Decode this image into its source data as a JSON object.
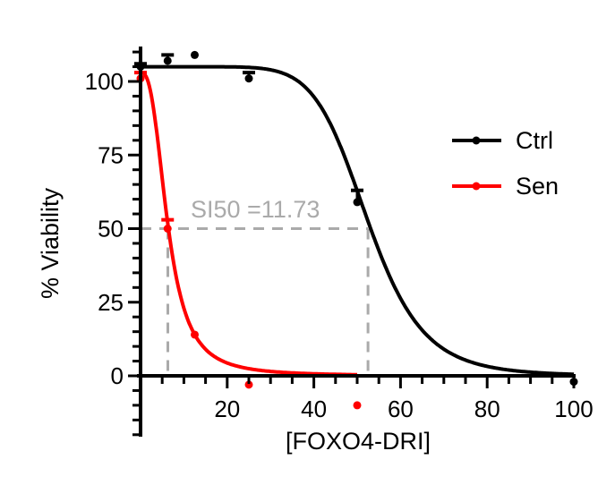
{
  "chart_data": {
    "type": "line",
    "title": "",
    "xlabel": "[FOXO4-DRI]",
    "ylabel": "% Viability",
    "xlim": [
      0,
      100
    ],
    "ylim": [
      -20,
      110
    ],
    "x_ticks": [
      "20",
      "40",
      "60",
      "80",
      "100"
    ],
    "y_ticks": [
      "0",
      "25",
      "50",
      "75",
      "100"
    ],
    "annotation": "SI50 =11.73",
    "legend_position": "right",
    "series": [
      {
        "name": "Ctrl",
        "color": "#000000",
        "points": [
          [
            0,
            105
          ],
          [
            6.25,
            107
          ],
          [
            12.5,
            109
          ],
          [
            25,
            101
          ],
          [
            50,
            59
          ],
          [
            100,
            -2
          ]
        ],
        "error_tops": [
          [
            0,
            106
          ],
          [
            6.25,
            109
          ],
          [
            25,
            103
          ],
          [
            50,
            63
          ]
        ],
        "fit": {
          "top": 105,
          "bottom": 0,
          "ic50": 52.5,
          "hill": 8.2,
          "xmax": 100
        }
      },
      {
        "name": "Sen",
        "color": "#ff0000",
        "points": [
          [
            0,
            101
          ],
          [
            6.25,
            50
          ],
          [
            12.5,
            14
          ],
          [
            25,
            -3
          ],
          [
            50,
            -10
          ]
        ],
        "error_tops": [
          [
            0,
            103
          ],
          [
            6.25,
            53
          ]
        ],
        "fit": {
          "top": 103,
          "bottom": 0,
          "ic50": 6.3,
          "hill": 2.7,
          "xmax": 50
        }
      }
    ],
    "reference_lines": {
      "y": 50,
      "x_values": [
        6.3,
        52.5
      ]
    }
  }
}
